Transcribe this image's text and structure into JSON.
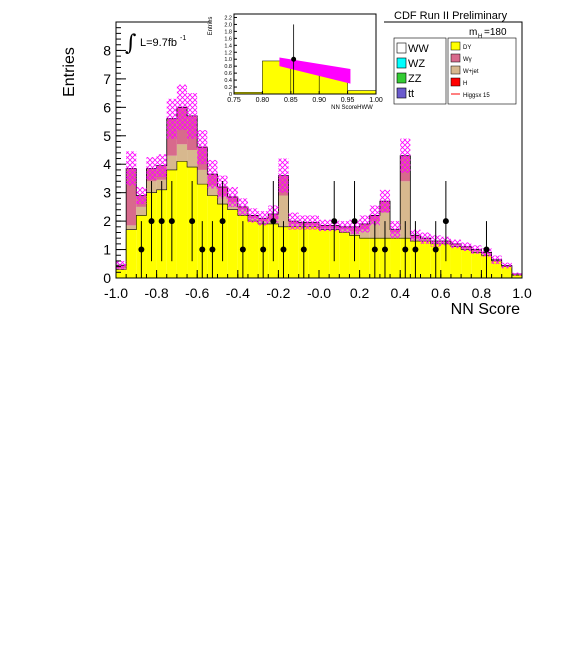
{
  "header": {
    "title": "CDF Run II Preliminary",
    "luminosity": "L=9.7fb",
    "luminosity_exp": "-1",
    "mass_label": "m",
    "mass_sub": "H",
    "mass_value": "=180"
  },
  "colors": {
    "DY": "#ffff00",
    "Wgamma": "#d86a8c",
    "Wjet": "#d7b88e",
    "H": "#ff0000",
    "WW": "#ffffff",
    "WZ": "#00ffff",
    "ZZ": "#33cc33",
    "ttbar": "#6a5acd",
    "Higgs": "#ff0000",
    "uncertainty": "#ff00ff",
    "data": "#000000"
  },
  "chart_data": [
    {
      "type": "bar",
      "subtype": "stacked-histogram",
      "xlabel": "NN Score",
      "ylabel": "Entries",
      "xlim": [
        -1.0,
        1.0
      ],
      "ylim": [
        0,
        9
      ],
      "x_ticks": [
        "-1.0",
        "-0.8",
        "-0.6",
        "-0.4",
        "-0.2",
        "-0.0",
        "0.2",
        "0.4",
        "0.6",
        "0.8",
        "1.0"
      ],
      "y_ticks": [
        "0",
        "1",
        "2",
        "3",
        "4",
        "5",
        "6",
        "7",
        "8"
      ],
      "bin_width": 0.05,
      "bin_low_edges": [
        -1.0,
        -0.95,
        -0.9,
        -0.85,
        -0.8,
        -0.75,
        -0.7,
        -0.65,
        -0.6,
        -0.55,
        -0.5,
        -0.45,
        -0.4,
        -0.35,
        -0.3,
        -0.25,
        -0.2,
        -0.15,
        -0.1,
        -0.05,
        0.0,
        0.05,
        0.1,
        0.15,
        0.2,
        0.25,
        0.3,
        0.35,
        0.4,
        0.45,
        0.5,
        0.55,
        0.6,
        0.65,
        0.7,
        0.75,
        0.8,
        0.85,
        0.9,
        0.95
      ],
      "series": [
        {
          "name": "DY",
          "color_key": "DY",
          "values": [
            0.3,
            1.7,
            2.2,
            3.0,
            3.1,
            3.8,
            4.1,
            3.9,
            3.3,
            2.9,
            2.6,
            2.4,
            2.2,
            2.0,
            1.9,
            1.9,
            1.8,
            1.8,
            1.8,
            1.8,
            1.7,
            1.7,
            1.6,
            1.5,
            1.4,
            1.4,
            1.4,
            1.4,
            1.4,
            1.3,
            1.3,
            1.2,
            1.2,
            1.1,
            1.0,
            0.9,
            0.8,
            0.6,
            0.4,
            0.1
          ]
        },
        {
          "name": "W+jet",
          "color_key": "Wjet",
          "values": [
            0.05,
            0.15,
            0.3,
            0.4,
            0.35,
            0.5,
            0.6,
            0.6,
            0.5,
            0.35,
            0.3,
            0.25,
            0.2,
            0.1,
            0.1,
            0.15,
            1.1,
            0.1,
            0.05,
            0.05,
            0.05,
            0.05,
            0.1,
            0.15,
            0.3,
            0.6,
            0.9,
            0.2,
            2.0,
            0.1,
            0.05,
            0.05,
            0.05,
            0.05,
            0.05,
            0.05,
            0.05,
            0.02,
            0.02,
            0.02
          ]
        },
        {
          "name": "Wγ",
          "color_key": "Wgamma",
          "values": [
            0.1,
            2.0,
            0.4,
            0.45,
            0.5,
            1.3,
            1.3,
            1.2,
            0.8,
            0.4,
            0.3,
            0.2,
            0.1,
            0.1,
            0.1,
            0.2,
            0.7,
            0.1,
            0.1,
            0.1,
            0.1,
            0.1,
            0.1,
            0.15,
            0.2,
            0.2,
            0.4,
            0.1,
            0.9,
            0.1,
            0.05,
            0.05,
            0.05,
            0.05,
            0.05,
            0.05,
            0.05,
            0.02,
            0.02,
            0.02
          ]
        },
        {
          "name": "H",
          "color_key": "H",
          "values": [
            0,
            0,
            0,
            0,
            0,
            0,
            0,
            0,
            0,
            0,
            0,
            0,
            0,
            0,
            0,
            0,
            0,
            0,
            0,
            0,
            0,
            0,
            0,
            0,
            0,
            0,
            0,
            0,
            0,
            0,
            0,
            0,
            0,
            0,
            0,
            0,
            0,
            0,
            0,
            0
          ]
        },
        {
          "name": "WW",
          "color_key": "WW",
          "values": [
            0,
            0,
            0,
            0,
            0,
            0,
            0,
            0,
            0,
            0,
            0,
            0,
            0,
            0,
            0,
            0,
            0,
            0,
            0,
            0,
            0,
            0,
            0,
            0,
            0,
            0,
            0,
            0,
            0,
            0,
            0,
            0,
            0,
            0,
            0,
            0,
            0,
            0,
            0,
            0
          ]
        }
      ],
      "uncertainty_halfwidth": [
        0.15,
        0.6,
        0.3,
        0.4,
        0.4,
        0.7,
        0.8,
        0.8,
        0.6,
        0.5,
        0.4,
        0.35,
        0.3,
        0.25,
        0.25,
        0.3,
        0.6,
        0.3,
        0.25,
        0.25,
        0.2,
        0.2,
        0.2,
        0.25,
        0.3,
        0.35,
        0.4,
        0.3,
        0.6,
        0.2,
        0.2,
        0.2,
        0.15,
        0.15,
        0.15,
        0.15,
        0.15,
        0.15,
        0.1,
        0.05
      ],
      "data_points": [
        {
          "x": -0.875,
          "y": 1,
          "err": 1.0
        },
        {
          "x": -0.825,
          "y": 2,
          "err": 1.41
        },
        {
          "x": -0.775,
          "y": 2,
          "err": 1.41
        },
        {
          "x": -0.725,
          "y": 2,
          "err": 1.41
        },
        {
          "x": -0.625,
          "y": 2,
          "err": 1.41
        },
        {
          "x": -0.575,
          "y": 1,
          "err": 1.0
        },
        {
          "x": -0.525,
          "y": 1,
          "err": 1.0
        },
        {
          "x": -0.475,
          "y": 2,
          "err": 1.41
        },
        {
          "x": -0.375,
          "y": 1,
          "err": 1.0
        },
        {
          "x": -0.275,
          "y": 1,
          "err": 1.0
        },
        {
          "x": -0.225,
          "y": 2,
          "err": 1.41
        },
        {
          "x": -0.175,
          "y": 1,
          "err": 1.0
        },
        {
          "x": -0.075,
          "y": 1,
          "err": 1.0
        },
        {
          "x": 0.075,
          "y": 2,
          "err": 1.41
        },
        {
          "x": 0.175,
          "y": 2,
          "err": 1.41
        },
        {
          "x": 0.275,
          "y": 1,
          "err": 1.0
        },
        {
          "x": 0.325,
          "y": 1,
          "err": 1.0
        },
        {
          "x": 0.425,
          "y": 1,
          "err": 1.0
        },
        {
          "x": 0.475,
          "y": 1,
          "err": 1.0
        },
        {
          "x": 0.575,
          "y": 1,
          "err": 1.0
        },
        {
          "x": 0.625,
          "y": 2,
          "err": 1.41
        },
        {
          "x": 0.825,
          "y": 1,
          "err": 1.0
        }
      ]
    },
    {
      "type": "bar",
      "subtype": "inset-histogram",
      "xlabel": "NN ScoreHWW",
      "ylabel": "Entries",
      "xlim": [
        0.75,
        1.0
      ],
      "ylim": [
        0,
        2.3
      ],
      "x_ticks": [
        "0.75",
        "0.80",
        "0.85",
        "0.90",
        "0.95",
        "1.00"
      ],
      "y_ticks": [
        "0",
        "0.2",
        "0.4",
        "0.6",
        "0.8",
        "1.0",
        "1.2",
        "1.4",
        "1.6",
        "1.8",
        "2.0",
        "2.2"
      ],
      "bins": [
        {
          "low": 0.75,
          "high": 0.8,
          "DY": 0.05
        },
        {
          "low": 0.8,
          "high": 0.85,
          "DY": 0.95
        },
        {
          "low": 0.85,
          "high": 0.9,
          "DY": 0.8
        },
        {
          "low": 0.9,
          "high": 0.95,
          "DY": 0.6
        },
        {
          "low": 0.95,
          "high": 1.0,
          "DY": 0.1
        }
      ],
      "uncertainty_band": {
        "x": [
          0.83,
          0.955
        ],
        "upper": [
          1.05,
          0.72
        ],
        "lower": [
          0.8,
          0.3
        ]
      },
      "data_points": [
        {
          "x": 0.855,
          "y": 1.0,
          "err": 1.0
        }
      ]
    }
  ],
  "legend": {
    "left": [
      {
        "label": "WW",
        "color_key": "WW"
      },
      {
        "label": "WZ",
        "color_key": "WZ"
      },
      {
        "label": "ZZ",
        "color_key": "ZZ"
      },
      {
        "label": "tt",
        "color_key": "ttbar"
      }
    ],
    "right": [
      {
        "label": "DY",
        "color_key": "DY",
        "style": "box"
      },
      {
        "label": "Wγ",
        "color_key": "Wgamma",
        "style": "box"
      },
      {
        "label": "W+jet",
        "color_key": "Wjet",
        "style": "box"
      },
      {
        "label": "H",
        "color_key": "H",
        "style": "box"
      },
      {
        "label": "Higgsx 15",
        "color_key": "Higgs",
        "style": "line"
      }
    ]
  }
}
